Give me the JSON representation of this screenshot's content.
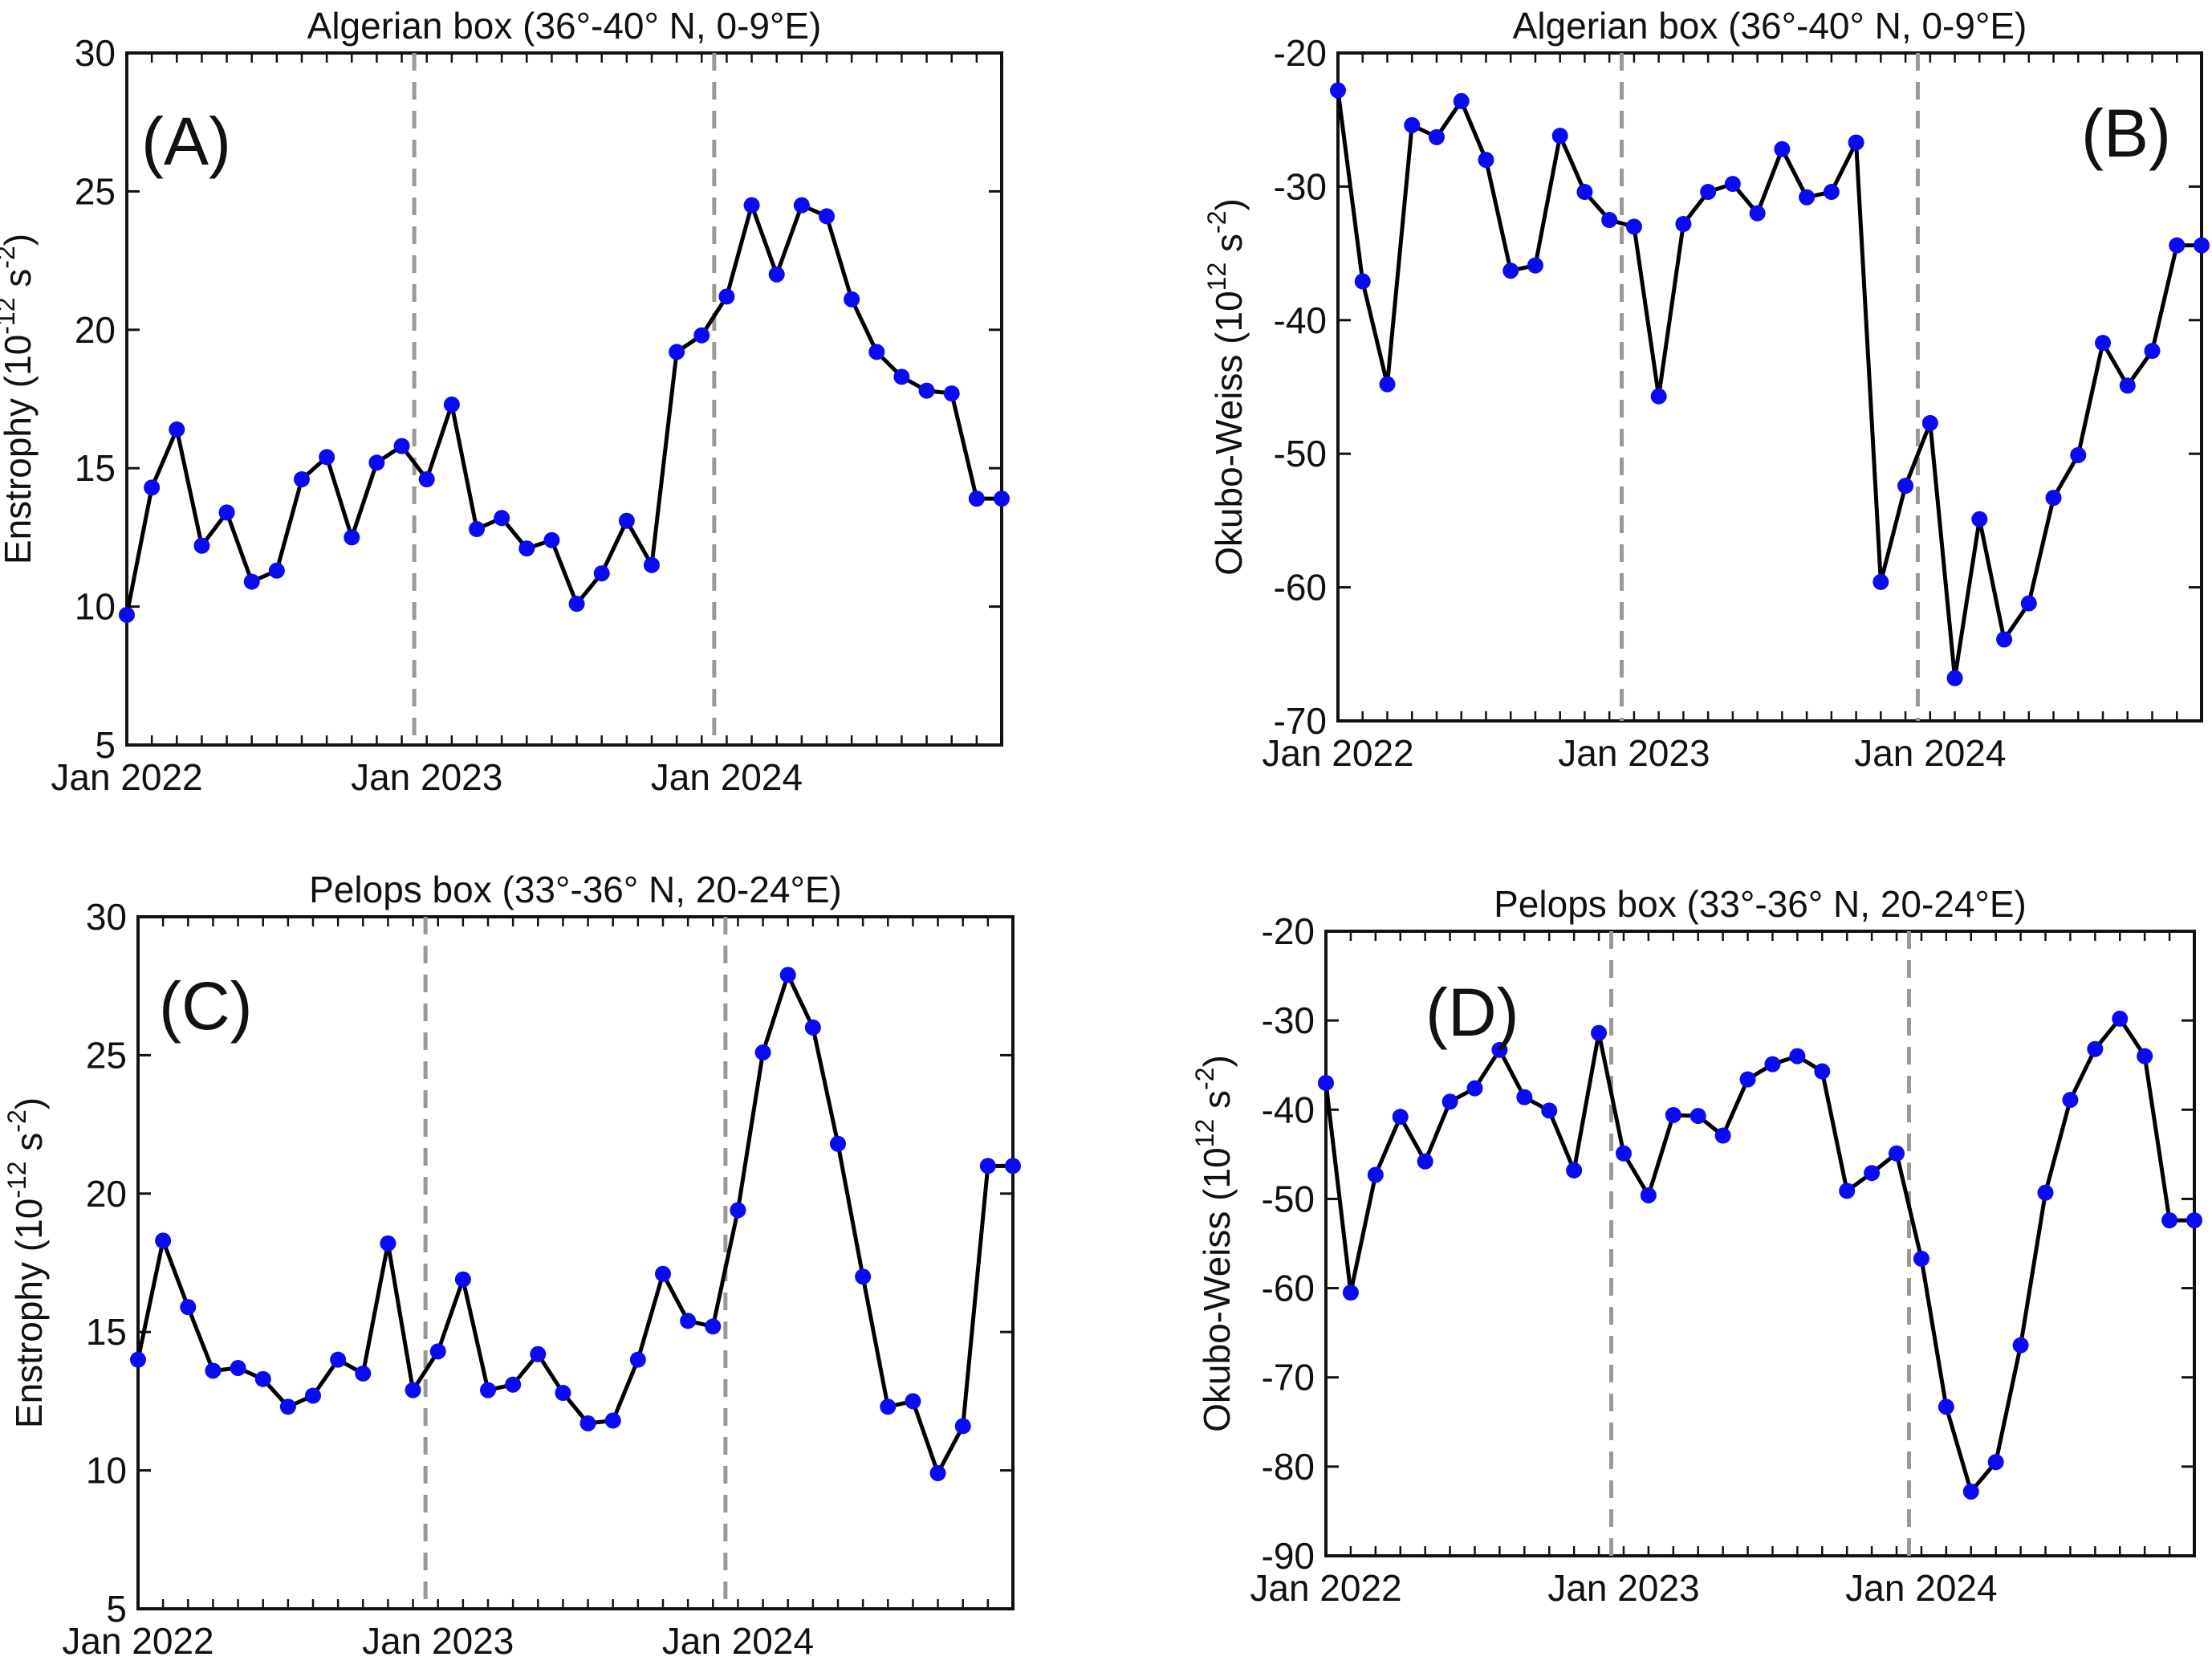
{
  "chart_data": [
    {
      "type": "line",
      "panel_label": "(A)",
      "title": "Algerian  box (36°-40° N, 0-9°E)",
      "ylabel": "Enstrophy (10^{-12} s^{-2})",
      "ylabel_parts": {
        "base": "Enstrophy (10",
        "exp1": "-12",
        "mid": " s",
        "exp2": "-2",
        "end": ")"
      },
      "xlabel": "",
      "ylim": [
        5,
        30
      ],
      "yticks": [
        5,
        10,
        15,
        20,
        25,
        30
      ],
      "xlim": [
        "2022-01",
        "2024-12"
      ],
      "xticks": [
        "Jan 2022",
        "Jan 2023",
        "Jan 2024"
      ],
      "vlines": [
        "2023-01",
        "2024-01"
      ],
      "x": [
        "2022-01",
        "2022-02",
        "2022-03",
        "2022-04",
        "2022-05",
        "2022-06",
        "2022-07",
        "2022-08",
        "2022-09",
        "2022-10",
        "2022-11",
        "2022-12",
        "2023-01",
        "2023-02",
        "2023-03",
        "2023-04",
        "2023-05",
        "2023-06",
        "2023-07",
        "2023-08",
        "2023-09",
        "2023-10",
        "2023-11",
        "2023-12",
        "2024-01",
        "2024-02",
        "2024-03",
        "2024-04",
        "2024-05",
        "2024-06",
        "2024-07",
        "2024-08",
        "2024-09",
        "2024-10",
        "2024-11",
        "2024-12"
      ],
      "values": [
        9.7,
        14.3,
        16.4,
        12.2,
        13.4,
        10.9,
        11.3,
        14.6,
        15.4,
        12.5,
        15.2,
        15.8,
        14.6,
        17.3,
        12.8,
        13.2,
        12.1,
        12.4,
        10.1,
        11.2,
        13.1,
        11.5,
        19.2,
        19.8,
        21.2,
        24.5,
        22.0,
        24.5,
        24.1,
        21.1,
        19.2,
        18.3,
        17.8,
        17.7,
        13.9,
        13.9
      ],
      "legend": null,
      "grid": false
    },
    {
      "type": "line",
      "panel_label": "(B)",
      "title": "Algerian  box (36°-40° N, 0-9°E)",
      "ylabel": "Okubo-Weiss  (10^{12} s^{-2})",
      "ylabel_parts": {
        "base": "Okubo-Weiss  (10",
        "exp1": "12",
        "mid": " s",
        "exp2": "-2",
        "end": ")"
      },
      "xlabel": "",
      "ylim": [
        -70,
        -20
      ],
      "yticks": [
        -70,
        -60,
        -50,
        -40,
        -30,
        -20
      ],
      "xlim": [
        "2022-01",
        "2024-12"
      ],
      "xticks": [
        "Jan 2022",
        "Jan 2023",
        "Jan 2024"
      ],
      "vlines": [
        "2023-01",
        "2024-01"
      ],
      "x": [
        "2022-01",
        "2022-02",
        "2022-03",
        "2022-04",
        "2022-05",
        "2022-06",
        "2022-07",
        "2022-08",
        "2022-09",
        "2022-10",
        "2022-11",
        "2022-12",
        "2023-01",
        "2023-02",
        "2023-03",
        "2023-04",
        "2023-05",
        "2023-06",
        "2023-07",
        "2023-08",
        "2023-09",
        "2023-10",
        "2023-11",
        "2023-12",
        "2024-01",
        "2024-02",
        "2024-03",
        "2024-04",
        "2024-05",
        "2024-06",
        "2024-07",
        "2024-08",
        "2024-09",
        "2024-10",
        "2024-11",
        "2024-12"
      ],
      "values": [
        -22.8,
        -37.1,
        -44.8,
        -25.4,
        -26.3,
        -23.6,
        -28.0,
        -36.3,
        -35.9,
        -26.2,
        -30.4,
        -32.5,
        -33.0,
        -45.7,
        -32.8,
        -30.4,
        -29.8,
        -32.0,
        -27.2,
        -30.8,
        -30.4,
        -26.7,
        -59.6,
        -52.4,
        -47.7,
        -66.8,
        -54.9,
        -63.9,
        -61.2,
        -53.3,
        -50.1,
        -41.7,
        -44.9,
        -42.3,
        -34.4,
        -34.4
      ],
      "legend": null,
      "grid": false
    },
    {
      "type": "line",
      "panel_label": "(C)",
      "title": "Pelops box (33°-36° N, 20-24°E)",
      "ylabel": "Enstrophy (10^{-12} s^{-2})",
      "ylabel_parts": {
        "base": "Enstrophy (10",
        "exp1": "-12",
        "mid": " s",
        "exp2": "-2",
        "end": ")"
      },
      "xlabel": "",
      "ylim": [
        5,
        30
      ],
      "yticks": [
        5,
        10,
        15,
        20,
        25,
        30
      ],
      "xlim": [
        "2022-01",
        "2024-12"
      ],
      "xticks": [
        "Jan 2022",
        "Jan 2023",
        "Jan 2024"
      ],
      "vlines": [
        "2023-01",
        "2024-01"
      ],
      "x": [
        "2022-01",
        "2022-02",
        "2022-03",
        "2022-04",
        "2022-05",
        "2022-06",
        "2022-07",
        "2022-08",
        "2022-09",
        "2022-10",
        "2022-11",
        "2022-12",
        "2023-01",
        "2023-02",
        "2023-03",
        "2023-04",
        "2023-05",
        "2023-06",
        "2023-07",
        "2023-08",
        "2023-09",
        "2023-10",
        "2023-11",
        "2023-12",
        "2024-01",
        "2024-02",
        "2024-03",
        "2024-04",
        "2024-05",
        "2024-06",
        "2024-07",
        "2024-08",
        "2024-09",
        "2024-10",
        "2024-11",
        "2024-12"
      ],
      "values": [
        14.0,
        18.3,
        15.9,
        13.6,
        13.7,
        13.3,
        12.3,
        12.7,
        14.0,
        13.5,
        18.2,
        12.9,
        14.3,
        16.9,
        12.9,
        13.1,
        14.2,
        12.8,
        11.7,
        11.8,
        14.0,
        17.1,
        15.4,
        15.2,
        19.4,
        25.1,
        27.9,
        26.0,
        21.8,
        17.0,
        12.3,
        12.5,
        9.9,
        11.6,
        21.0,
        21.0
      ],
      "legend": null,
      "grid": false
    },
    {
      "type": "line",
      "panel_label": "(D)",
      "title": "Pelops box (33°-36° N, 20-24°E)",
      "ylabel": "Okubo-Weiss  (10^{12} s^{-2})",
      "ylabel_parts": {
        "base": "Okubo-Weiss  (10",
        "exp1": "12",
        "mid": " s",
        "exp2": "-2",
        "end": ")"
      },
      "xlabel": "",
      "ylim": [
        -90,
        -20
      ],
      "yticks": [
        -90,
        -80,
        -70,
        -60,
        -50,
        -40,
        -30,
        -20
      ],
      "xlim": [
        "2022-01",
        "2024-12"
      ],
      "xticks": [
        "Jan 2022",
        "Jan 2023",
        "Jan 2024"
      ],
      "vlines": [
        "2023-01",
        "2024-01"
      ],
      "x": [
        "2022-01",
        "2022-02",
        "2022-03",
        "2022-04",
        "2022-05",
        "2022-06",
        "2022-07",
        "2022-08",
        "2022-09",
        "2022-10",
        "2022-11",
        "2022-12",
        "2023-01",
        "2023-02",
        "2023-03",
        "2023-04",
        "2023-05",
        "2023-06",
        "2023-07",
        "2023-08",
        "2023-09",
        "2023-10",
        "2023-11",
        "2023-12",
        "2024-01",
        "2024-02",
        "2024-03",
        "2024-04",
        "2024-05",
        "2024-06",
        "2024-07",
        "2024-08",
        "2024-09",
        "2024-10",
        "2024-11",
        "2024-12"
      ],
      "values": [
        -37.0,
        -60.5,
        -47.3,
        -40.8,
        -45.8,
        -39.1,
        -37.6,
        -33.3,
        -38.6,
        -40.1,
        -46.8,
        -31.4,
        -44.9,
        -49.6,
        -40.6,
        -40.7,
        -42.9,
        -36.6,
        -34.9,
        -34.0,
        -35.7,
        -49.1,
        -47.1,
        -44.9,
        -56.7,
        -73.3,
        -82.8,
        -79.5,
        -66.4,
        -49.3,
        -38.9,
        -33.2,
        -29.8,
        -34.0,
        -52.4,
        -52.4
      ],
      "legend": null,
      "grid": false
    }
  ],
  "colors": {
    "line": "#000000",
    "marker": "#0a0af5",
    "vline": "#999999",
    "axes": "#111111"
  }
}
